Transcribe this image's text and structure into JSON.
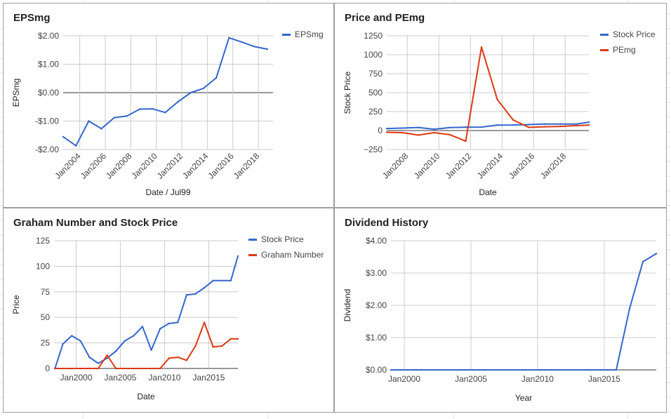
{
  "chart_data": [
    {
      "type": "line",
      "title": "EPSmg",
      "xlabel": "Date / Jul99",
      "ylabel": "EPSmg",
      "ylim": [
        -2,
        2
      ],
      "yticks": [
        2,
        1,
        0,
        -1,
        -2
      ],
      "ytick_labels": [
        "$2.00",
        "$1.00",
        "$0.00",
        "-$1.00",
        "-$2.00"
      ],
      "x_domain": [
        2002.7,
        2019.15
      ],
      "xticks": [
        2004,
        2006,
        2008,
        2010,
        2012,
        2014,
        2016,
        2018
      ],
      "xtick_labels": [
        "Jan2004",
        "Jan2006",
        "Jan2008",
        "Jan2010",
        "Jan2012",
        "Jan2014",
        "Jan2016",
        "Jan2018"
      ],
      "legend_position": "right",
      "series": [
        {
          "name": "EPSmg",
          "color": "#3366cc",
          "x": [
            2002.7,
            2003.7,
            2004.7,
            2005.7,
            2006.7,
            2007.7,
            2008.7,
            2009.7,
            2010.7,
            2011.7,
            2012.7,
            2013.7,
            2014.7,
            2015.7,
            2016.7,
            2017.7,
            2018.7
          ],
          "y": [
            -1.55,
            -1.87,
            -1.0,
            -1.27,
            -0.88,
            -0.82,
            -0.58,
            -0.57,
            -0.7,
            -0.32,
            0.0,
            0.15,
            0.52,
            1.93,
            1.78,
            1.62,
            1.53
          ]
        }
      ]
    },
    {
      "type": "line",
      "title": "Price and PEmg",
      "xlabel": "Date",
      "ylabel": "Stock Price",
      "ylim": [
        -250,
        1250
      ],
      "yticks": [
        1250,
        1000,
        750,
        500,
        250,
        0,
        -250
      ],
      "ytick_labels": [
        "1250",
        "1000",
        "750",
        "500",
        "250",
        "0",
        "−250"
      ],
      "x_domain": [
        2006.7,
        2019.5
      ],
      "xticks": [
        2008,
        2010,
        2012,
        2014,
        2016,
        2018
      ],
      "xtick_labels": [
        "Jan2008",
        "Jan2010",
        "Jan2012",
        "Jan2014",
        "Jan2016",
        "Jan2018"
      ],
      "legend_position": "right",
      "series": [
        {
          "name": "Stock Price",
          "color": "#3366cc",
          "x": [
            2006.7,
            2007.7,
            2008.7,
            2009.7,
            2010.7,
            2011.7,
            2012.7,
            2013.7,
            2014.7,
            2015.7,
            2016.7,
            2017.7,
            2018.7,
            2019.5
          ],
          "y": [
            27,
            32,
            41,
            18,
            39,
            44,
            45,
            72,
            73,
            79,
            86,
            86,
            86,
            110
          ]
        },
        {
          "name": "PEmg",
          "color": "#dc3912",
          "x": [
            2006.7,
            2007.7,
            2008.7,
            2009.7,
            2010.7,
            2011.7,
            2012.7,
            2013.7,
            2014.7,
            2015.7,
            2016.7,
            2017.7,
            2018.7,
            2019.5
          ],
          "y": [
            -23,
            -28,
            -60,
            -28,
            -55,
            -140,
            1100,
            410,
            140,
            42,
            50,
            55,
            65,
            72
          ]
        }
      ]
    },
    {
      "type": "line",
      "title": "Graham Number and Stock Price",
      "xlabel": "Date",
      "ylabel": "Price",
      "ylim": [
        0,
        125
      ],
      "yticks": [
        125,
        100,
        75,
        50,
        25,
        0
      ],
      "ytick_labels": [
        "125",
        "100",
        "75",
        "50",
        "25",
        "0"
      ],
      "x_domain": [
        1997.5,
        2018.3
      ],
      "xticks": [
        2000,
        2005,
        2010,
        2015
      ],
      "xtick_labels": [
        "Jan2000",
        "Jan2005",
        "Jan2010",
        "Jan2015"
      ],
      "legend_position": "right",
      "series": [
        {
          "name": "Stock Price",
          "color": "#3366cc",
          "x": [
            1997.6,
            1998.5,
            1999.5,
            2000.5,
            2001.5,
            2002.5,
            2003.5,
            2004.5,
            2005.5,
            2006.5,
            2007.5,
            2008.5,
            2009.5,
            2010.5,
            2011.5,
            2012.5,
            2013.5,
            2014.5,
            2015.5,
            2016.5,
            2017.5,
            2018.3
          ],
          "y": [
            0,
            24,
            32,
            27,
            11,
            5,
            10,
            17,
            27,
            32,
            41,
            18,
            39,
            44,
            45,
            72,
            73,
            79,
            86,
            86,
            86,
            110
          ]
        },
        {
          "name": "Graham Number",
          "color": "#dc3912",
          "x": [
            1997.6,
            1998.5,
            1999.5,
            2000.5,
            2001.5,
            2002.5,
            2003.5,
            2004.5,
            2005.5,
            2006.5,
            2007.5,
            2008.5,
            2009.5,
            2010.5,
            2011.5,
            2012.5,
            2013.5,
            2014.5,
            2015.5,
            2016.5,
            2017.5,
            2018.3
          ],
          "y": [
            0,
            0,
            0,
            0,
            0,
            0,
            13,
            0,
            0,
            0,
            0,
            0,
            0,
            10,
            11,
            8,
            22,
            45,
            21,
            22,
            29,
            29
          ]
        }
      ]
    },
    {
      "type": "line",
      "title": "Dividend History",
      "xlabel": "Year",
      "ylabel": "Dividend",
      "ylim": [
        0,
        4
      ],
      "yticks": [
        4,
        3,
        2,
        1,
        0
      ],
      "ytick_labels": [
        "$4.00",
        "$3.00",
        "$2.00",
        "$1.00",
        "$0.00"
      ],
      "x_domain": [
        1999,
        2018.9
      ],
      "xticks": [
        2000,
        2005,
        2010,
        2015
      ],
      "xtick_labels": [
        "Jan2000",
        "Jan2005",
        "Jan2010",
        "Jan2015"
      ],
      "legend_position": "none",
      "series": [
        {
          "name": "",
          "color": "#3366cc",
          "x": [
            1999,
            2014.9,
            2015.9,
            2016.9,
            2017.9,
            2018.9
          ],
          "y": [
            0,
            0,
            0,
            1.9,
            3.35,
            3.6
          ]
        }
      ]
    }
  ]
}
